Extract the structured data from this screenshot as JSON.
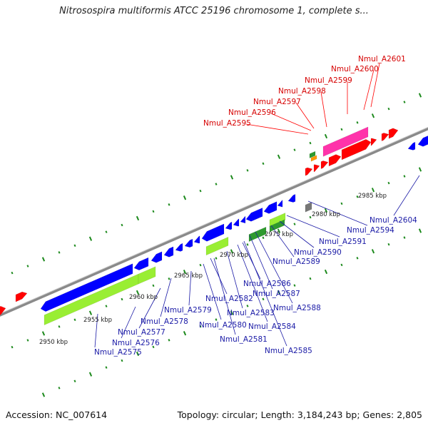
{
  "title": "Nitrosospira multiformis ATCC 25196 chromosome 1, complete s...",
  "footer": {
    "accession": "Accession: NC_007614",
    "summary": "Topology: circular; Length: 3,184,243 bp; Genes: 2,805"
  },
  "colors": {
    "backbone": "#8a8a8a",
    "forward_gene": "#ff0000",
    "reverse_gene": "#0000ff",
    "highlight_green": "#99ee33",
    "dark_green": "#2e9a2e",
    "pink": "#ff33aa",
    "orange": "#ff9900",
    "gray_gene": "#777777",
    "tick": "#1d8a1d"
  },
  "scale_labels": [
    "2950 kbp",
    "2955 kbp",
    "2960 kbp",
    "2965 kbp",
    "2970 kbp",
    "2975 kbp",
    "2980 kbp",
    "2985 kbp"
  ],
  "top_labels": [
    "Nmul_A2595",
    "Nmul_A2596",
    "Nmul_A2597",
    "Nmul_A2598",
    "Nmul_A2599",
    "Nmul_A2600",
    "Nmul_A2601"
  ],
  "bottom_labels": [
    "Nmul_A2575",
    "Nmul_A2576",
    "Nmul_A2577",
    "Nmul_A2578",
    "Nmul_A2579",
    "Nmul_A2580",
    "Nmul_A2581",
    "Nmul_A2582",
    "Nmul_A2583",
    "Nmul_A2584",
    "Nmul_A2585",
    "Nmul_A2586",
    "Nmul_A2587",
    "Nmul_A2588",
    "Nmul_A2589",
    "Nmul_A2590",
    "Nmul_A2591",
    "Nmul_A2594",
    "Nmul_A2604"
  ]
}
